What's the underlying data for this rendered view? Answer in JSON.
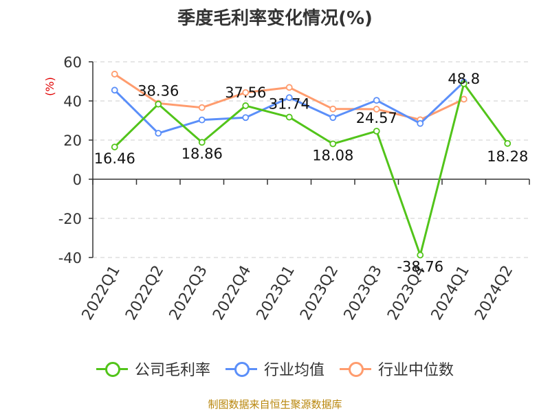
{
  "chart_data": {
    "type": "line",
    "title": "季度毛利率变化情况(%)",
    "ylabel": "(%)",
    "xlabel": "",
    "ylim": [
      -40,
      60
    ],
    "yticks": [
      -40,
      -20,
      0,
      20,
      40,
      60
    ],
    "grid": true,
    "legend_position": "bottom",
    "categories": [
      "2022Q1",
      "2022Q2",
      "2022Q3",
      "2022Q4",
      "2023Q1",
      "2023Q2",
      "2023Q3",
      "2023Q4",
      "2024Q1",
      "2024Q2"
    ],
    "series": [
      {
        "name": "公司毛利率",
        "color": "#52c41a",
        "values": [
          16.46,
          38.36,
          18.86,
          37.56,
          31.74,
          18.08,
          24.57,
          -38.76,
          48.8,
          18.28
        ],
        "labels": [
          "16.46",
          "38.36",
          "18.86",
          "37.56",
          "31.74",
          "18.08",
          "24.57",
          "-38.76",
          "48.8",
          "18.28"
        ]
      },
      {
        "name": "行业均值",
        "color": "#5b8ff9",
        "values": [
          45.5,
          23.5,
          30.3,
          31.5,
          41.7,
          31.5,
          40.3,
          28.5,
          49.7,
          null
        ]
      },
      {
        "name": "行业中位数",
        "color": "#ff9c6e",
        "values": [
          53.7,
          38.8,
          36.6,
          44.3,
          46.9,
          35.9,
          35.8,
          30.4,
          40.9,
          null
        ]
      }
    ]
  },
  "source_note": "制图数据来自恒生聚源数据库"
}
